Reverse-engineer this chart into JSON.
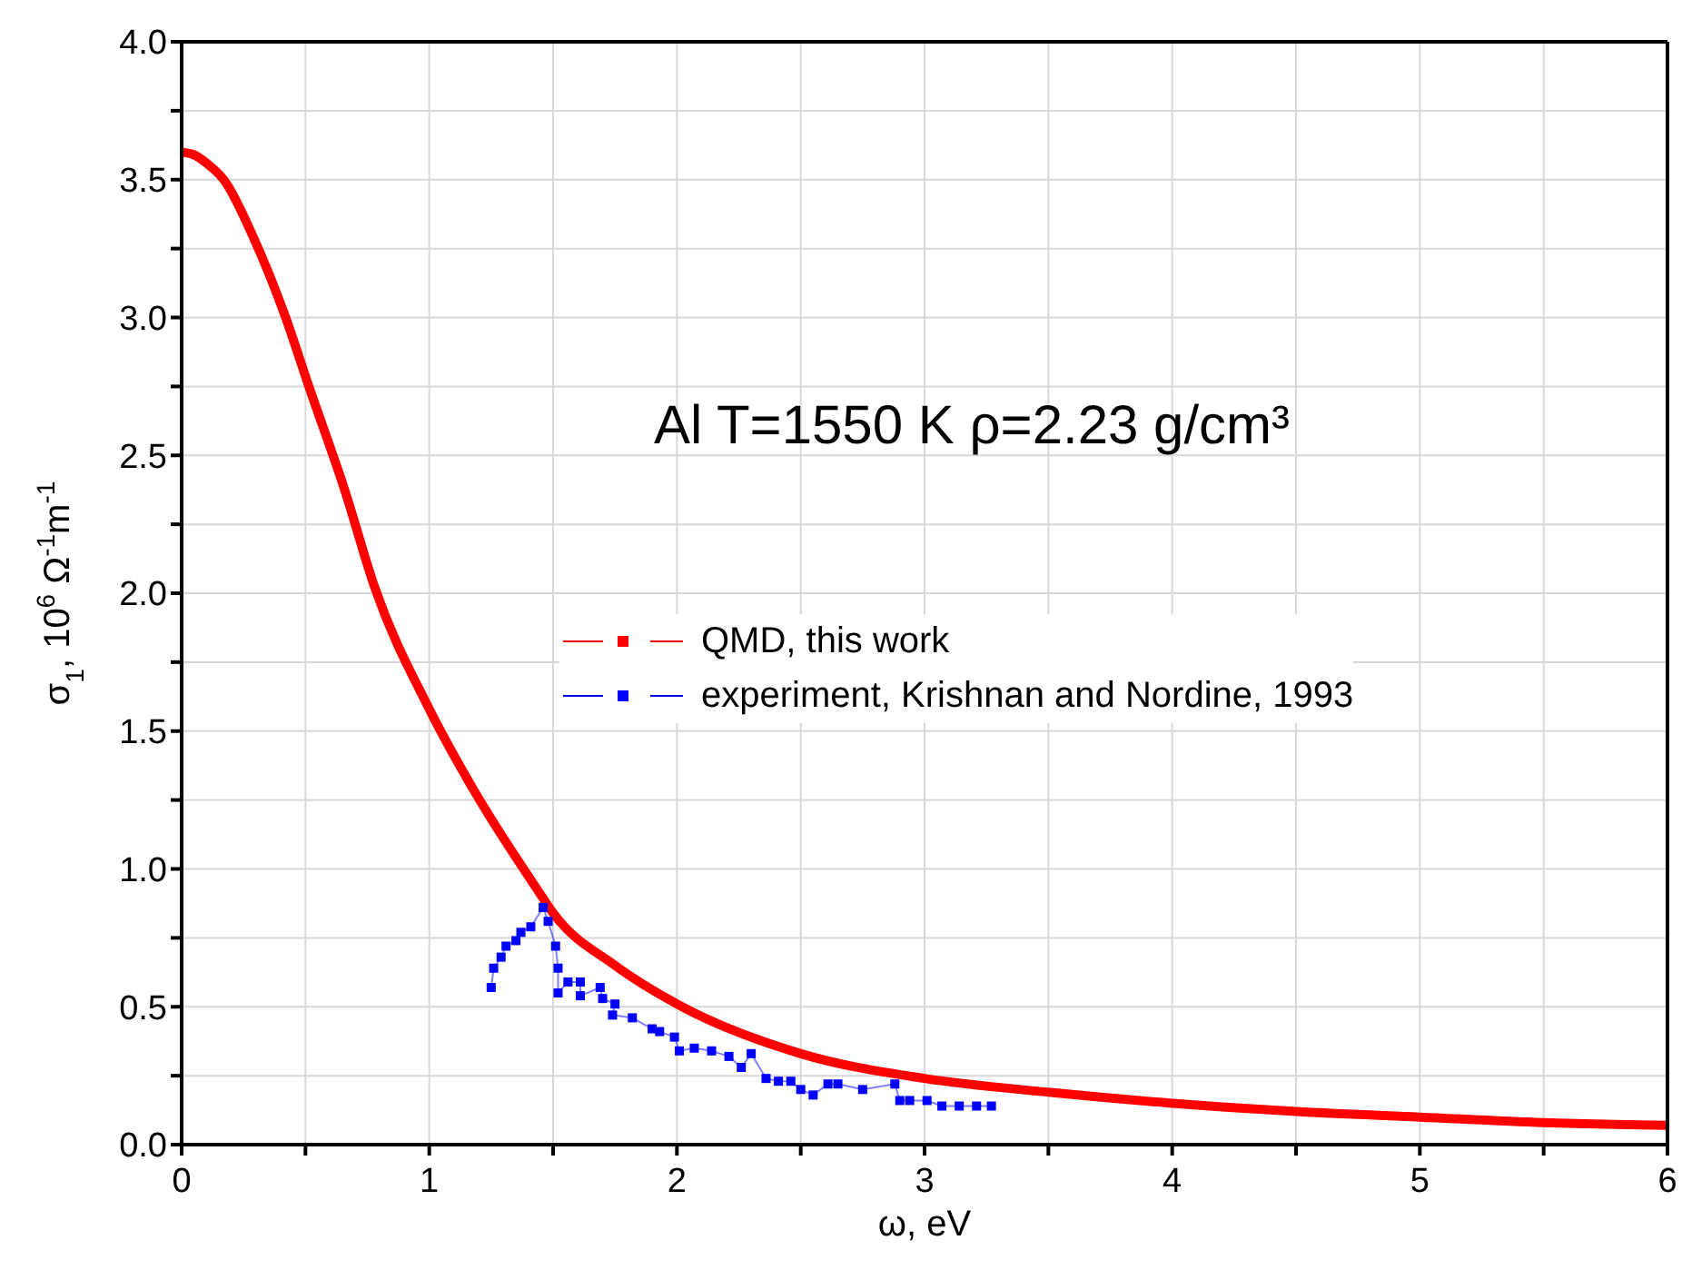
{
  "chart_data": {
    "type": "line",
    "xlabel": "ω, eV",
    "ylabel": "σ$_{1}$, 10$^{6}$ Ω$^{-1}$m$^{-1}$",
    "annotations": [
      "Al  T=1550 K  ρ=2.23 g/cm³"
    ],
    "xlim": [
      0,
      6
    ],
    "xticks": [
      0,
      {
        "value": 0.5,
        "label": null
      },
      1,
      {
        "value": 1.5,
        "label": null
      },
      2,
      {
        "value": 2.5,
        "label": null
      },
      3,
      {
        "value": 3.5,
        "label": null
      },
      4,
      {
        "value": 4.5,
        "label": null
      },
      5,
      {
        "value": 5.5,
        "label": null
      },
      6
    ],
    "ylim": [
      0,
      4
    ],
    "yticks": [
      {
        "value": 0,
        "label": "0.0"
      },
      {
        "value": 0.25,
        "label": null
      },
      0.5,
      {
        "value": 0.75,
        "label": null
      },
      {
        "value": 1,
        "label": "1.0"
      },
      {
        "value": 1.25,
        "label": null
      },
      1.5,
      {
        "value": 1.75,
        "label": null
      },
      {
        "value": 2,
        "label": "2.0"
      },
      {
        "value": 2.25,
        "label": null
      },
      2.5,
      {
        "value": 2.75,
        "label": null
      },
      {
        "value": 3,
        "label": "3.0"
      },
      {
        "value": 3.25,
        "label": null
      },
      3.5,
      {
        "value": 3.75,
        "label": null
      },
      {
        "value": 4,
        "label": "4.0"
      }
    ],
    "grid": true,
    "legend": "right",
    "series": [
      {
        "name": "QMD, this work",
        "color": "#ff0000",
        "marker": "none",
        "x": [
          0,
          0.05,
          0.1,
          0.17,
          0.29,
          0.42,
          0.51,
          0.66,
          0.78,
          1.0,
          1.19,
          1.44,
          1.5,
          1.75,
          2,
          2.5,
          3,
          3.5,
          4,
          4.5,
          5,
          5.5,
          6
        ],
        "values": [
          3.6,
          3.59,
          3.56,
          3.5,
          3.29,
          3.0,
          2.76,
          2.37,
          2.02,
          1.58,
          1.27,
          0.92,
          0.84,
          0.65,
          0.51,
          0.33,
          0.24,
          0.19,
          0.15,
          0.12,
          0.1,
          0.08,
          0.07
        ]
      },
      {
        "name": "experiment, Krishnan and Nordine, 1993",
        "color": "#0000ff",
        "marker": "square",
        "x": [
          1.25,
          1.26,
          1.29,
          1.31,
          1.35,
          1.37,
          1.41,
          1.46,
          1.48,
          1.51,
          1.52,
          1.52,
          1.56,
          1.61,
          1.61,
          1.69,
          1.7,
          1.75,
          1.74,
          1.82,
          1.9,
          1.93,
          1.99,
          2.01,
          2.07,
          2.14,
          2.21,
          2.26,
          2.3,
          2.36,
          2.41,
          2.46,
          2.5,
          2.55,
          2.61,
          2.65,
          2.75,
          2.88,
          2.9,
          2.94,
          3.01,
          3.07,
          3.14,
          3.21,
          3.27
        ],
        "values": [
          0.57,
          0.64,
          0.68,
          0.72,
          0.74,
          0.77,
          0.79,
          0.86,
          0.81,
          0.72,
          0.64,
          0.55,
          0.59,
          0.59,
          0.54,
          0.57,
          0.53,
          0.51,
          0.47,
          0.46,
          0.42,
          0.41,
          0.39,
          0.34,
          0.35,
          0.34,
          0.32,
          0.28,
          0.33,
          0.24,
          0.23,
          0.23,
          0.2,
          0.18,
          0.22,
          0.22,
          0.2,
          0.22,
          0.16,
          0.16,
          0.16,
          0.14,
          0.14,
          0.14,
          0.14
        ]
      }
    ]
  }
}
